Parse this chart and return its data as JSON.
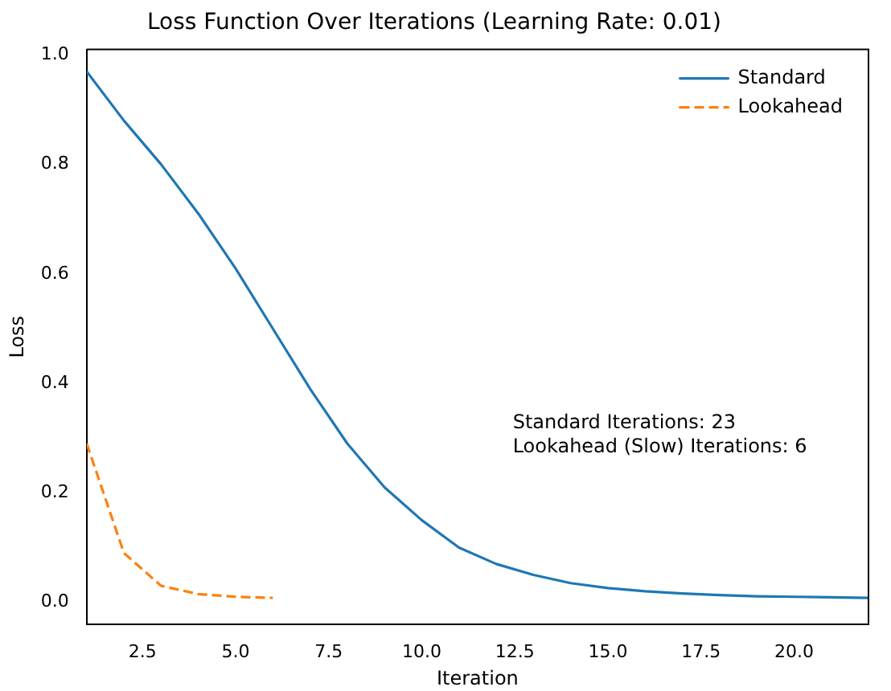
{
  "chart_data": {
    "type": "line",
    "title": "Loss Function Over Iterations (Learning Rate: 0.01)",
    "xlabel": "Iteration",
    "ylabel": "Loss",
    "series": [
      {
        "name": "Standard",
        "color": "#1f77b4",
        "line_style": "solid",
        "x": [
          1,
          2,
          3,
          4,
          5,
          6,
          7,
          8,
          9,
          10,
          11,
          12,
          13,
          14,
          15,
          16,
          17,
          18,
          19,
          20,
          21,
          22
        ],
        "values": [
          0.97,
          0.88,
          0.8,
          0.71,
          0.61,
          0.5,
          0.39,
          0.29,
          0.21,
          0.15,
          0.1,
          0.07,
          0.05,
          0.035,
          0.026,
          0.02,
          0.016,
          0.013,
          0.011,
          0.01,
          0.009,
          0.008
        ]
      },
      {
        "name": "Lookahead",
        "color": "#ff7f0e",
        "line_style": "dashed",
        "x": [
          1,
          2,
          3,
          4,
          5,
          6
        ],
        "values": [
          0.29,
          0.09,
          0.03,
          0.015,
          0.01,
          0.008
        ]
      }
    ],
    "annotations": [
      "Standard Iterations: 23",
      "Lookahead (Slow) Iterations: 6"
    ],
    "xlim": [
      1,
      22
    ],
    "xticks": [
      {
        "value": 2.5,
        "label": "2.5"
      },
      {
        "value": 5,
        "label": "5.0"
      },
      {
        "value": 7.5,
        "label": "7.5"
      },
      {
        "value": 10,
        "label": "10.0"
      },
      {
        "value": 12.5,
        "label": "12.5"
      },
      {
        "value": 15,
        "label": "15.0"
      },
      {
        "value": 17.5,
        "label": "17.5"
      },
      {
        "value": 20,
        "label": "20.0"
      }
    ],
    "ylim": [
      -0.04,
      1.01
    ],
    "yticks": [
      {
        "value": 0,
        "label": "0.0"
      },
      {
        "value": 0.2,
        "label": "0.2"
      },
      {
        "value": 0.4,
        "label": "0.4"
      },
      {
        "value": 0.6,
        "label": "0.6"
      },
      {
        "value": 0.8,
        "label": "0.8"
      },
      {
        "value": 1,
        "label": "1.0"
      }
    ],
    "grid": false,
    "legend": "top right",
    "marker": "none"
  }
}
